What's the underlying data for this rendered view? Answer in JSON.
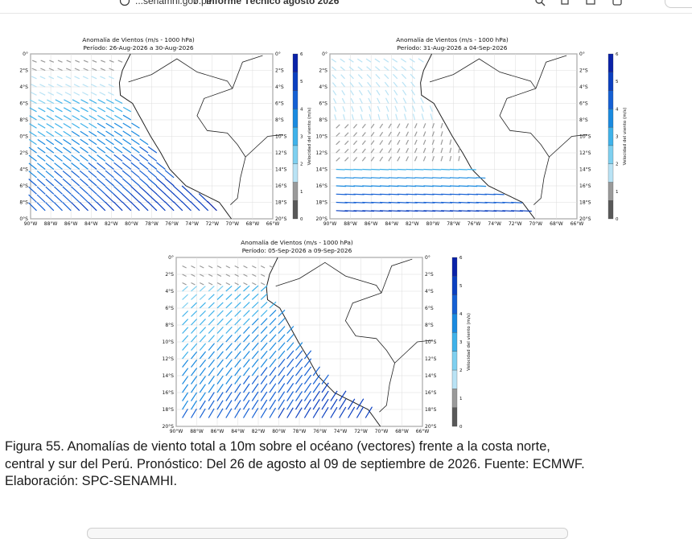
{
  "header": {
    "breadcrumb_1": "...senamhi.gob.pe",
    "separator": "/",
    "breadcrumb_2": "Informe Técnico agosto 2026",
    "icons": [
      "search-icon",
      "copy-icon",
      "share-icon",
      "more-icon"
    ]
  },
  "maps": {
    "title": "Anomalía de Vientos (m/s - 1000 hPa)",
    "lat_labels": [
      "0°",
      "2°S",
      "4°S",
      "6°S",
      "8°S",
      "10°S",
      "12°S",
      "14°S",
      "16°S",
      "18°S",
      "20°S"
    ],
    "lon_labels": [
      "90°W",
      "88°W",
      "86°W",
      "84°W",
      "82°W",
      "80°W",
      "78°W",
      "76°W",
      "74°W",
      "72°W",
      "70°W",
      "68°W",
      "66°W"
    ],
    "colorbar": {
      "label": "Velocidad del viento (m/s)",
      "ticks": [
        "0",
        "1",
        "2",
        "3",
        "4",
        "5",
        "6"
      ],
      "colors": [
        "#595959",
        "#9a9a9a",
        "#b9e3f5",
        "#7fd0f0",
        "#3fb2ea",
        "#1a8ae0",
        "#1560d4",
        "#0b3fc0",
        "#0a22a8"
      ]
    },
    "panels": [
      {
        "period": "Período: 26-Aug-2026 a 30-Aug-2026"
      },
      {
        "period": "Período: 31-Aug-2026 a 04-Sep-2026"
      },
      {
        "period": "Período: 05-Sep-2026 a 09-Sep-2026"
      }
    ]
  },
  "caption": {
    "line1": "Figura 55. Anomalías de viento total a 10m sobre el océano (vectores) frente a la costa norte,",
    "line2": "central y sur del Perú. Pronóstico: Del 26 de agosto al 09 de septiembre de 2026. Fuente: ECMWF.",
    "line3": "Elaboración: SPC-SENAMHI."
  }
}
